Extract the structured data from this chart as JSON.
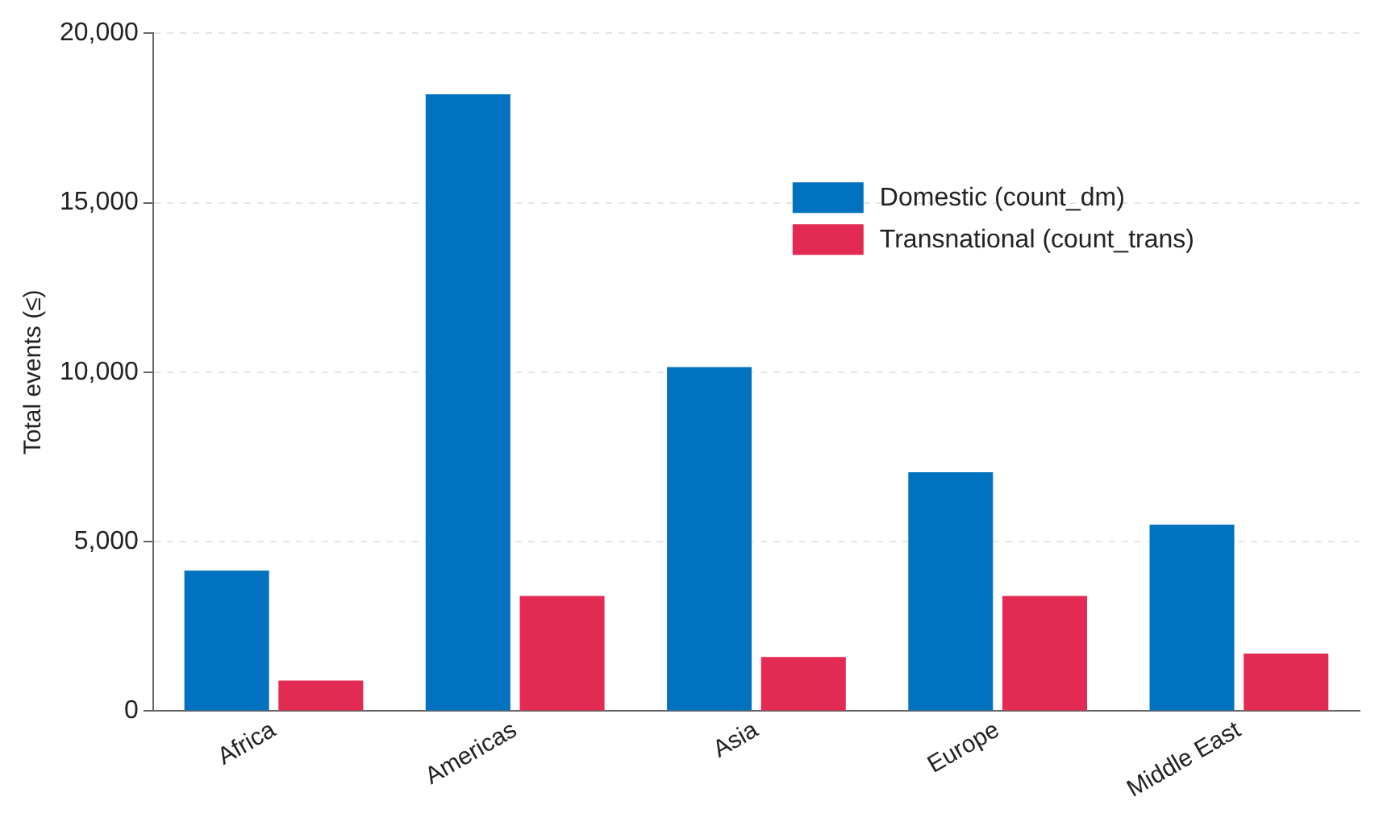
{
  "chart_data": {
    "type": "bar",
    "ylabel": "Total events (≤)",
    "categories": [
      "Africa",
      "Americas",
      "Asia",
      "Europe",
      "Middle East"
    ],
    "series": [
      {
        "name": "Domestic (count_dm)",
        "color": "#0072c0",
        "values": [
          4150,
          18200,
          10150,
          7050,
          5500
        ]
      },
      {
        "name": "Transnational (count_trans)",
        "color": "#e32a52",
        "values": [
          900,
          3400,
          1600,
          3400,
          1700
        ]
      }
    ],
    "ylim": [
      0,
      20000
    ],
    "yticks": [
      {
        "value": 0,
        "label": "0"
      },
      {
        "value": 5000,
        "label": "5,000"
      },
      {
        "value": 10000,
        "label": "10,000"
      },
      {
        "value": 15000,
        "label": "15,000"
      },
      {
        "value": 20000,
        "label": "20,000"
      }
    ],
    "grid": "y",
    "legend": "top right"
  }
}
